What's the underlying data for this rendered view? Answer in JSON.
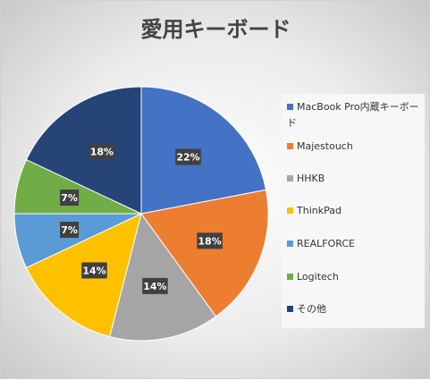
{
  "chart_data": {
    "type": "pie",
    "title": "愛用キーボード",
    "categories": [
      "MacBook Pro内蔵キーボード",
      "Majestouch",
      "HHKB",
      "ThinkPad",
      "REALFORCE",
      "Logitech",
      "その他"
    ],
    "values": [
      22,
      18,
      14,
      14,
      7,
      7,
      18
    ],
    "labels": [
      "22%",
      "18%",
      "14%",
      "14%",
      "7%",
      "7%",
      "18%"
    ],
    "colors": [
      "#4472c4",
      "#ed7d31",
      "#a5a5a5",
      "#ffc000",
      "#5b9bd5",
      "#70ad47",
      "#264478"
    ],
    "legend_position": "right"
  }
}
